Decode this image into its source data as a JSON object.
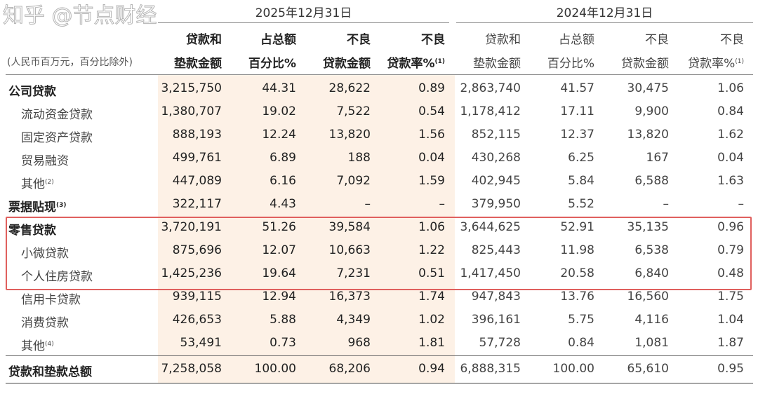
{
  "header": {
    "period_2025": "2025年12月31日",
    "period_2024": "2024年12月31日",
    "units": "(人民币百万元，百分比除外)",
    "columns": [
      {
        "line1": "贷款和",
        "line2": "垫款金额",
        "sup": ""
      },
      {
        "line1": "占总额",
        "line2": "百分比%",
        "sup": ""
      },
      {
        "line1": "不良",
        "line2": "贷款金额",
        "sup": ""
      },
      {
        "line1": "不良",
        "line2": "贷款率%",
        "sup": "(1)"
      }
    ]
  },
  "rows": [
    {
      "label": "公司贷款",
      "sup": "",
      "type": "bold",
      "v2025": [
        "3,215,750",
        "44.31",
        "28,622",
        "0.89"
      ],
      "v2024": [
        "2,863,740",
        "41.57",
        "30,475",
        "1.06"
      ]
    },
    {
      "label": "流动资金贷款",
      "sup": "",
      "type": "sub",
      "v2025": [
        "1,380,707",
        "19.02",
        "7,522",
        "0.54"
      ],
      "v2024": [
        "1,178,412",
        "17.11",
        "9,900",
        "0.84"
      ]
    },
    {
      "label": "固定资产贷款",
      "sup": "",
      "type": "sub",
      "v2025": [
        "888,193",
        "12.24",
        "13,820",
        "1.56"
      ],
      "v2024": [
        "852,115",
        "12.37",
        "13,820",
        "1.62"
      ]
    },
    {
      "label": "贸易融资",
      "sup": "",
      "type": "sub",
      "v2025": [
        "499,761",
        "6.89",
        "188",
        "0.04"
      ],
      "v2024": [
        "430,268",
        "6.25",
        "167",
        "0.04"
      ]
    },
    {
      "label": "其他",
      "sup": "(2)",
      "type": "sub",
      "v2025": [
        "447,089",
        "6.16",
        "7,092",
        "1.59"
      ],
      "v2024": [
        "402,945",
        "5.84",
        "6,588",
        "1.63"
      ]
    },
    {
      "label": "票据贴现",
      "sup": "(3)",
      "type": "bold",
      "v2025": [
        "322,117",
        "4.43",
        "–",
        "–"
      ],
      "v2024": [
        "379,950",
        "5.52",
        "–",
        "–"
      ]
    },
    {
      "label": "零售贷款",
      "sup": "",
      "type": "bold",
      "v2025": [
        "3,720,191",
        "51.26",
        "39,584",
        "1.06"
      ],
      "v2024": [
        "3,644,625",
        "52.91",
        "35,135",
        "0.96"
      ]
    },
    {
      "label": "小微贷款",
      "sup": "",
      "type": "sub",
      "v2025": [
        "875,696",
        "12.07",
        "10,663",
        "1.22"
      ],
      "v2024": [
        "825,443",
        "11.98",
        "6,538",
        "0.79"
      ]
    },
    {
      "label": "个人住房贷款",
      "sup": "",
      "type": "sub",
      "v2025": [
        "1,425,236",
        "19.64",
        "7,231",
        "0.51"
      ],
      "v2024": [
        "1,417,450",
        "20.58",
        "6,840",
        "0.48"
      ]
    },
    {
      "label": "信用卡贷款",
      "sup": "",
      "type": "sub",
      "v2025": [
        "939,115",
        "12.94",
        "16,373",
        "1.74"
      ],
      "v2024": [
        "947,843",
        "13.76",
        "16,560",
        "1.75"
      ]
    },
    {
      "label": "消费贷款",
      "sup": "",
      "type": "sub",
      "v2025": [
        "426,653",
        "5.88",
        "4,349",
        "1.02"
      ],
      "v2024": [
        "396,161",
        "5.75",
        "4,116",
        "1.04"
      ]
    },
    {
      "label": "其他",
      "sup": "(4)",
      "type": "sub",
      "v2025": [
        "53,491",
        "0.73",
        "968",
        "1.81"
      ],
      "v2024": [
        "57,728",
        "0.84",
        "1,081",
        "1.87"
      ]
    },
    {
      "label": "贷款和垫款总额",
      "sup": "",
      "type": "bold",
      "v2025": [
        "7,258,058",
        "100.00",
        "68,206",
        "0.94"
      ],
      "v2024": [
        "6,888,315",
        "100.00",
        "65,610",
        "0.95"
      ]
    }
  ],
  "highlight_color": "#e0605e",
  "watermark": "知乎 @节点财经"
}
